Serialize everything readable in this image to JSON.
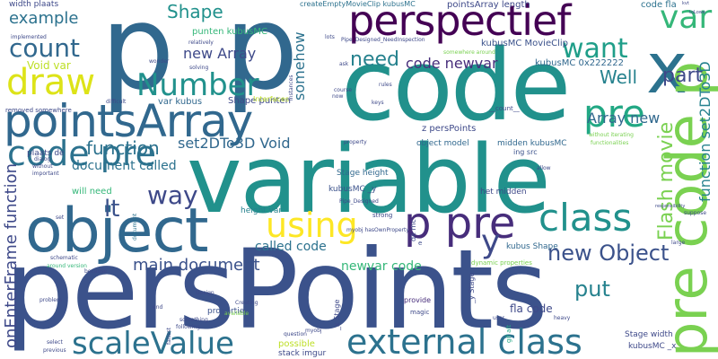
{
  "words": [
    {
      "text": "persPoints",
      "color": "#3b528b"
    },
    {
      "text": "variable",
      "color": "#21918c"
    },
    {
      "text": "code",
      "color": "#21918c"
    },
    {
      "text": "p",
      "color": "#31688e"
    },
    {
      "text": "p",
      "color": "#31688e"
    },
    {
      "text": "object",
      "color": "#31688e"
    },
    {
      "text": "pointsArray",
      "color": "#31688e"
    },
    {
      "text": "perspectief",
      "color": "#440154"
    },
    {
      "text": "x",
      "color": "#2c728e"
    },
    {
      "text": "pre code p",
      "color": "#7ad151"
    },
    {
      "text": "code pre",
      "color": "#2c728e"
    },
    {
      "text": "p pre",
      "color": "#472d7b"
    },
    {
      "text": "external class",
      "color": "#2c728e"
    },
    {
      "text": "scaleValue",
      "color": "#2c728e"
    },
    {
      "text": "class",
      "color": "#21918c"
    },
    {
      "text": "using",
      "color": "#fde725"
    },
    {
      "text": "Number",
      "color": "#21918c"
    },
    {
      "text": "draw",
      "color": "#dde318"
    },
    {
      "text": "count",
      "color": "#31688e"
    },
    {
      "text": "pre",
      "color": "#22a884"
    },
    {
      "text": "want",
      "color": "#1f9e89"
    },
    {
      "text": "var",
      "color": "#35b779"
    },
    {
      "text": "need",
      "color": "#26828e"
    },
    {
      "text": "way",
      "color": "#3e4989"
    },
    {
      "text": "Flash movie",
      "color": "#7ad151"
    },
    {
      "text": "new Object",
      "color": "#3b528b"
    },
    {
      "text": "put",
      "color": "#26828e"
    },
    {
      "text": "main document",
      "color": "#3b528b"
    },
    {
      "text": "y",
      "color": "#3e4989"
    },
    {
      "text": "function",
      "color": "#2c728e"
    },
    {
      "text": "lt",
      "color": "#3b528b"
    },
    {
      "text": "Shape",
      "color": "#21918c"
    },
    {
      "text": "example",
      "color": "#2c728e"
    },
    {
      "text": "part",
      "color": "#3e4989"
    },
    {
      "text": "Well",
      "color": "#26828e"
    },
    {
      "text": "set2DTo3D Void",
      "color": "#31688e"
    },
    {
      "text": "somehow",
      "color": "#2c728e"
    },
    {
      "text": "new Array",
      "color": "#3e4989"
    },
    {
      "text": "code newvar",
      "color": "#472d7b"
    },
    {
      "text": "Array new",
      "color": "#31688e"
    },
    {
      "text": "onEnterFrame function",
      "color": "#3e4989"
    },
    {
      "text": "function set2DTo3D",
      "color": "#26828e"
    },
    {
      "text": "document called",
      "color": "#2c728e"
    },
    {
      "text": "called code",
      "color": "#2c728e"
    },
    {
      "text": "newvar code",
      "color": "#35b779"
    },
    {
      "text": "Void var",
      "color": "#bddf26"
    },
    {
      "text": "width plaats",
      "color": "#3e4989"
    },
    {
      "text": "pointsArray length",
      "color": "#3e4989"
    },
    {
      "text": "createEmptyMovieClip kubusMC",
      "color": "#2c728e"
    },
    {
      "text": "code fla",
      "color": "#2c728e"
    },
    {
      "text": "kubusMC MovieClip",
      "color": "#3b528b"
    },
    {
      "text": "kubusMC 0x222222",
      "color": "#31688e"
    },
    {
      "text": "punten kubusMC",
      "color": "#35b779"
    },
    {
      "text": "Shape punten",
      "color": "#3e4989"
    },
    {
      "text": "var kubus",
      "color": "#31688e"
    },
    {
      "text": "z persPoints",
      "color": "#3e4989"
    },
    {
      "text": "object model",
      "color": "#31688e"
    },
    {
      "text": "midden kubusMC",
      "color": "#31688e"
    },
    {
      "text": "Stage height",
      "color": "#31688e"
    },
    {
      "text": "kubusMC _y",
      "color": "#3b528b"
    },
    {
      "text": "het midden",
      "color": "#3e4989"
    },
    {
      "text": "kubus Shape",
      "color": "#31688e"
    },
    {
      "text": "fla code",
      "color": "#3e4989"
    },
    {
      "text": "Stage width",
      "color": "#3e4989"
    },
    {
      "text": "kubusMC _x",
      "color": "#3e4989"
    },
    {
      "text": "will need",
      "color": "#35b779"
    },
    {
      "text": "height var",
      "color": "#26828e"
    },
    {
      "text": "properties",
      "color": "#3b528b"
    },
    {
      "text": "possible",
      "color": "#bddf26"
    },
    {
      "text": "stack imgur",
      "color": "#3e4989"
    },
    {
      "text": "plaats de",
      "color": "#3e4989"
    },
    {
      "text": "document",
      "color": "#2c728e"
    },
    {
      "text": "removed somewhere",
      "color": "#3e4989"
    },
    {
      "text": "Pipe_Designed_NeedInspection",
      "color": "#3e4989"
    },
    {
      "text": "somewhere around",
      "color": "#7ad151"
    },
    {
      "text": "dynamic properties",
      "color": "#7ad151"
    },
    {
      "text": "provide",
      "color": "#472d7b"
    },
    {
      "text": "magic",
      "color": "#3e4989"
    },
    {
      "text": "myobj hasOwnProperty",
      "color": "#3e4989"
    },
    {
      "text": "__count__",
      "color": "#3e4989"
    },
    {
      "text": "ing src",
      "color": "#3b528b"
    },
    {
      "text": "strong",
      "color": "#3e4989"
    },
    {
      "text": "de mc",
      "color": "#3e4989"
    },
    {
      "text": "_y Stage",
      "color": "#3e4989"
    },
    {
      "text": "_x Stage",
      "color": "#3e4989"
    },
    {
      "text": "functionalities",
      "color": "#7ad151"
    },
    {
      "text": "without iterating",
      "color": "#7ad151"
    },
    {
      "text": "property",
      "color": "#3e4989"
    },
    {
      "text": "allow",
      "color": "#3e4989"
    },
    {
      "text": "Pipe_Designed",
      "color": "#3e4989"
    },
    {
      "text": "question",
      "color": "#3e4989"
    },
    {
      "text": "myobj",
      "color": "#3e4989"
    },
    {
      "text": "Creating",
      "color": "#3e4989"
    },
    {
      "text": "Design",
      "color": "#3e4989"
    },
    {
      "text": "gif alt",
      "color": "#22a884"
    },
    {
      "text": "heavy",
      "color": "#3e4989"
    },
    {
      "text": "user",
      "color": "#3e4989"
    },
    {
      "text": "following",
      "color": "#3e4989"
    },
    {
      "text": "something",
      "color": "#3e4989"
    },
    {
      "text": "available",
      "color": "#7ad151"
    },
    {
      "text": "faltest",
      "color": "#3e4989"
    },
    {
      "text": "important",
      "color": "#3e4989"
    },
    {
      "text": "dialog",
      "color": "#3e4989"
    },
    {
      "text": "without",
      "color": "#3e4989"
    },
    {
      "text": "difficult",
      "color": "#3e4989"
    },
    {
      "text": "implemented",
      "color": "#3e4989"
    },
    {
      "text": "relatively",
      "color": "#3e4989"
    },
    {
      "text": "wonder",
      "color": "#3e4989"
    },
    {
      "text": "solving",
      "color": "#3e4989"
    },
    {
      "text": "Interfaces",
      "color": "#bddf26"
    },
    {
      "text": "instances",
      "color": "#3e4989"
    },
    {
      "text": "course",
      "color": "#3e4989"
    },
    {
      "text": "rules",
      "color": "#3e4989"
    },
    {
      "text": "keys",
      "color": "#3e4989"
    },
    {
      "text": "ask",
      "color": "#3e4989"
    },
    {
      "text": "lots",
      "color": "#3e4989"
    },
    {
      "text": "now",
      "color": "#3e4989"
    },
    {
      "text": "large",
      "color": "#3e4989"
    },
    {
      "text": "end",
      "color": "#3e4989"
    },
    {
      "text": "select",
      "color": "#3e4989"
    },
    {
      "text": "previous",
      "color": "#3e4989"
    },
    {
      "text": "problem",
      "color": "#3e4989"
    },
    {
      "text": "schematic",
      "color": "#3e4989"
    },
    {
      "text": "around version",
      "color": "#35b779"
    },
    {
      "text": "because",
      "color": "#3e4989"
    },
    {
      "text": "set",
      "color": "#3e4989"
    },
    {
      "text": "suppose",
      "color": "#3e4989"
    },
    {
      "text": "responsibility",
      "color": "#3e4989"
    },
    {
      "text": "e",
      "color": "#3e4989"
    },
    {
      "text": "kvt",
      "color": "#3e4989"
    },
    {
      "text": "toLowe",
      "color": "#3e4989"
    }
  ]
}
